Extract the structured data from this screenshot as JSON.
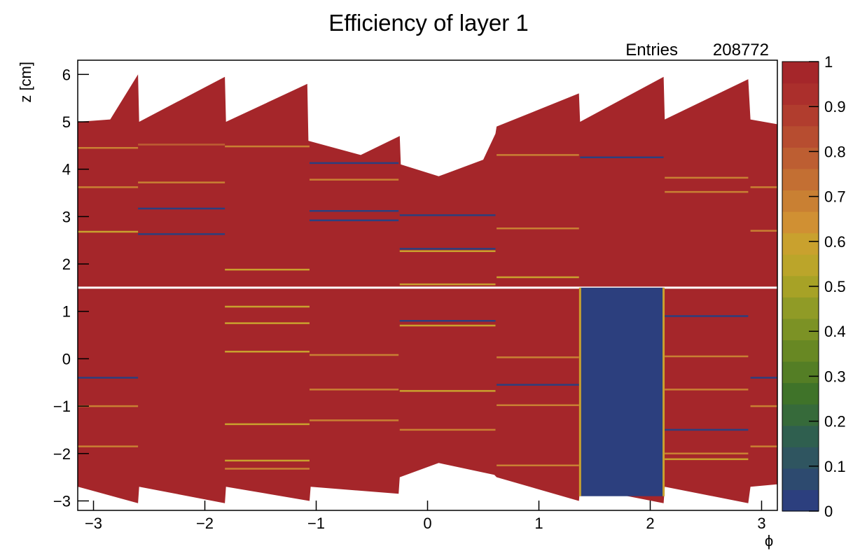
{
  "chart_data": {
    "type": "heatmap",
    "title": "Efficiency of layer 1",
    "stats": {
      "label": "Entries",
      "value": "208772"
    },
    "xlabel": "ϕ",
    "ylabel": "z [cm]",
    "xlim": [
      -3.1416,
      3.1416
    ],
    "ylim": [
      -3.2,
      6.3
    ],
    "zlim": [
      0,
      1
    ],
    "x_ticks": [
      -3,
      -2,
      -1,
      0,
      1,
      2,
      3
    ],
    "x_tick_labels": [
      "−3",
      "−2",
      "−1",
      "0",
      "1",
      "2",
      "3"
    ],
    "y_ticks": [
      -3,
      -2,
      -1,
      0,
      1,
      2,
      3,
      4,
      5,
      6
    ],
    "y_tick_labels": [
      "−3",
      "−2",
      "−1",
      "0",
      "1",
      "2",
      "3",
      "4",
      "5",
      "6"
    ],
    "z_ticks": [
      0,
      0.1,
      0.2,
      0.3,
      0.4,
      0.5,
      0.6,
      0.7,
      0.8,
      0.9,
      1
    ],
    "z_tick_labels": [
      "0",
      "0.1",
      "0.2",
      "0.3",
      "0.4",
      "0.5",
      "0.6",
      "0.7",
      "0.8",
      "0.9",
      "1"
    ],
    "palette": [
      "#2c3f7e",
      "#2d4a6f",
      "#2f5560",
      "#2f5f4f",
      "#366a3a",
      "#3f7329",
      "#547e25",
      "#688823",
      "#7c9225",
      "#909b26",
      "#a7a226",
      "#bba52a",
      "#c9a12e",
      "#d09033",
      "#c98033",
      "#c36f33",
      "#bd5e32",
      "#b74d30",
      "#b13d2e",
      "#ab2f2c",
      "#a5262a"
    ],
    "default_efficiency": 0.99,
    "gap_z": 1.5,
    "upper_edge": [
      {
        "phi": -3.14,
        "z": 5.0
      },
      {
        "phi": -2.85,
        "z": 5.05
      },
      {
        "phi": -2.6,
        "z": 6.0
      },
      {
        "phi": -2.59,
        "z": 5.0
      },
      {
        "phi": -1.82,
        "z": 5.95
      },
      {
        "phi": -1.81,
        "z": 5.0
      },
      {
        "phi": -1.08,
        "z": 5.8
      },
      {
        "phi": -1.07,
        "z": 4.6
      },
      {
        "phi": -0.6,
        "z": 4.3
      },
      {
        "phi": -0.25,
        "z": 4.7
      },
      {
        "phi": -0.24,
        "z": 4.1
      },
      {
        "phi": 0.1,
        "z": 3.85
      },
      {
        "phi": 0.5,
        "z": 4.2
      },
      {
        "phi": 0.61,
        "z": 4.75
      },
      {
        "phi": 0.62,
        "z": 4.9
      },
      {
        "phi": 1.36,
        "z": 5.6
      },
      {
        "phi": 1.37,
        "z": 5.0
      },
      {
        "phi": 2.12,
        "z": 5.95
      },
      {
        "phi": 2.13,
        "z": 5.05
      },
      {
        "phi": 2.88,
        "z": 5.9
      },
      {
        "phi": 2.9,
        "z": 5.05
      },
      {
        "phi": 3.14,
        "z": 4.95
      }
    ],
    "lower_edge": [
      {
        "phi": -3.14,
        "z": -2.7
      },
      {
        "phi": -2.6,
        "z": -3.05
      },
      {
        "phi": -2.59,
        "z": -2.7
      },
      {
        "phi": -1.82,
        "z": -3.05
      },
      {
        "phi": -1.81,
        "z": -2.7
      },
      {
        "phi": -1.06,
        "z": -3.0
      },
      {
        "phi": -1.05,
        "z": -2.7
      },
      {
        "phi": -0.26,
        "z": -2.85
      },
      {
        "phi": -0.25,
        "z": -2.5
      },
      {
        "phi": 0.1,
        "z": -2.2
      },
      {
        "phi": 0.6,
        "z": -2.45
      },
      {
        "phi": 0.62,
        "z": -2.5
      },
      {
        "phi": 1.36,
        "z": -3.0
      },
      {
        "phi": 1.37,
        "z": -2.7
      },
      {
        "phi": 2.12,
        "z": -3.05
      },
      {
        "phi": 2.13,
        "z": -2.7
      },
      {
        "phi": 2.88,
        "z": -3.05
      },
      {
        "phi": 2.9,
        "z": -2.7
      },
      {
        "phi": 3.14,
        "z": -2.65
      }
    ],
    "dead_region": {
      "phi_min": 1.37,
      "phi_max": 2.12,
      "z_min": -2.9,
      "z_max": 1.5,
      "efficiency": 0.0
    },
    "dead_region_borders": [
      {
        "phi": 1.37,
        "z_min": -2.9,
        "z_max": 1.5,
        "efficiency": 0.6
      },
      {
        "phi": 2.12,
        "z_min": -2.9,
        "z_max": 1.5,
        "efficiency": 0.6
      }
    ],
    "low_efficiency_strips": [
      {
        "phi_min": -3.14,
        "phi_max": -2.6,
        "z": 4.45,
        "efficiency": 0.7
      },
      {
        "phi_min": -3.14,
        "phi_max": -2.6,
        "z": 3.62,
        "efficiency": 0.7
      },
      {
        "phi_min": -3.14,
        "phi_max": -2.6,
        "z": 2.68,
        "efficiency": 0.6
      },
      {
        "phi_min": -2.6,
        "phi_max": -1.82,
        "z": 4.52,
        "efficiency": 0.8
      },
      {
        "phi_min": -2.6,
        "phi_max": -1.82,
        "z": 3.72,
        "efficiency": 0.7
      },
      {
        "phi_min": -2.6,
        "phi_max": -1.82,
        "z": 3.17,
        "efficiency": 0.0
      },
      {
        "phi_min": -2.6,
        "phi_max": -1.82,
        "z": 2.63,
        "efficiency": 0.0
      },
      {
        "phi_min": -1.82,
        "phi_max": -1.06,
        "z": 4.48,
        "efficiency": 0.7
      },
      {
        "phi_min": -1.82,
        "phi_max": -1.06,
        "z": 1.88,
        "efficiency": 0.6
      },
      {
        "phi_min": -1.06,
        "phi_max": -0.26,
        "z": 4.13,
        "efficiency": 0.0
      },
      {
        "phi_min": -1.06,
        "phi_max": -0.26,
        "z": 3.78,
        "efficiency": 0.7
      },
      {
        "phi_min": -1.06,
        "phi_max": -0.26,
        "z": 3.12,
        "efficiency": 0.0
      },
      {
        "phi_min": -1.06,
        "phi_max": -0.26,
        "z": 2.92,
        "efficiency": 0.0
      },
      {
        "phi_min": -0.25,
        "phi_max": 0.61,
        "z": 3.03,
        "efficiency": 0.0
      },
      {
        "phi_min": -0.25,
        "phi_max": 0.61,
        "z": 2.32,
        "efficiency": 0.0
      },
      {
        "phi_min": -0.25,
        "phi_max": 0.61,
        "z": 2.27,
        "efficiency": 0.6
      },
      {
        "phi_min": -0.25,
        "phi_max": 0.61,
        "z": 1.57,
        "efficiency": 0.6
      },
      {
        "phi_min": 0.62,
        "phi_max": 1.36,
        "z": 4.3,
        "efficiency": 0.7
      },
      {
        "phi_min": 0.62,
        "phi_max": 1.36,
        "z": 2.75,
        "efficiency": 0.7
      },
      {
        "phi_min": 0.62,
        "phi_max": 1.36,
        "z": 1.72,
        "efficiency": 0.6
      },
      {
        "phi_min": 1.37,
        "phi_max": 2.12,
        "z": 4.25,
        "efficiency": 0.0
      },
      {
        "phi_min": 2.13,
        "phi_max": 2.88,
        "z": 3.82,
        "efficiency": 0.7
      },
      {
        "phi_min": 2.13,
        "phi_max": 2.88,
        "z": 3.52,
        "efficiency": 0.7
      },
      {
        "phi_min": 2.9,
        "phi_max": 3.14,
        "z": 3.62,
        "efficiency": 0.7
      },
      {
        "phi_min": 2.9,
        "phi_max": 3.14,
        "z": 2.7,
        "efficiency": 0.7
      },
      {
        "phi_min": -1.82,
        "phi_max": -1.06,
        "z": 1.1,
        "efficiency": 0.6
      },
      {
        "phi_min": -1.82,
        "phi_max": -1.06,
        "z": 0.75,
        "efficiency": 0.6
      },
      {
        "phi_min": -1.82,
        "phi_max": -1.06,
        "z": 0.15,
        "efficiency": 0.6
      },
      {
        "phi_min": -1.82,
        "phi_max": -1.06,
        "z": -1.38,
        "efficiency": 0.6
      },
      {
        "phi_min": -1.82,
        "phi_max": -1.06,
        "z": -2.15,
        "efficiency": 0.6
      },
      {
        "phi_min": -1.82,
        "phi_max": -1.06,
        "z": -2.32,
        "efficiency": 0.7
      },
      {
        "phi_min": -1.06,
        "phi_max": -0.26,
        "z": 0.08,
        "efficiency": 0.7
      },
      {
        "phi_min": -1.06,
        "phi_max": -0.26,
        "z": -0.65,
        "efficiency": 0.7
      },
      {
        "phi_min": -1.06,
        "phi_max": -0.26,
        "z": -1.3,
        "efficiency": 0.7
      },
      {
        "phi_min": -0.25,
        "phi_max": 0.61,
        "z": 0.8,
        "efficiency": 0.0
      },
      {
        "phi_min": -0.25,
        "phi_max": 0.61,
        "z": 0.7,
        "efficiency": 0.6
      },
      {
        "phi_min": -0.25,
        "phi_max": 0.61,
        "z": -0.68,
        "efficiency": 0.6
      },
      {
        "phi_min": -0.25,
        "phi_max": 0.61,
        "z": -1.5,
        "efficiency": 0.7
      },
      {
        "phi_min": 0.62,
        "phi_max": 1.36,
        "z": 0.03,
        "efficiency": 0.7
      },
      {
        "phi_min": 0.62,
        "phi_max": 1.36,
        "z": -0.55,
        "efficiency": 0.0
      },
      {
        "phi_min": 0.62,
        "phi_max": 1.36,
        "z": -0.98,
        "efficiency": 0.7
      },
      {
        "phi_min": 0.62,
        "phi_max": 1.36,
        "z": -2.25,
        "efficiency": 0.7
      },
      {
        "phi_min": 2.13,
        "phi_max": 2.88,
        "z": 0.9,
        "efficiency": 0.0
      },
      {
        "phi_min": 2.13,
        "phi_max": 2.88,
        "z": 0.05,
        "efficiency": 0.7
      },
      {
        "phi_min": 2.13,
        "phi_max": 2.88,
        "z": -0.65,
        "efficiency": 0.7
      },
      {
        "phi_min": 2.13,
        "phi_max": 2.88,
        "z": -1.5,
        "efficiency": 0.0
      },
      {
        "phi_min": 2.13,
        "phi_max": 2.88,
        "z": -2.0,
        "efficiency": 0.7
      },
      {
        "phi_min": 2.13,
        "phi_max": 2.88,
        "z": -2.12,
        "efficiency": 0.6
      },
      {
        "phi_min": -3.14,
        "phi_max": -2.6,
        "z": -0.4,
        "efficiency": 0.0
      },
      {
        "phi_min": -3.14,
        "phi_max": -2.6,
        "z": -1.0,
        "efficiency": 0.7
      },
      {
        "phi_min": -3.14,
        "phi_max": -2.6,
        "z": -1.85,
        "efficiency": 0.7
      },
      {
        "phi_min": 2.9,
        "phi_max": 3.14,
        "z": -0.4,
        "efficiency": 0.0
      },
      {
        "phi_min": 2.9,
        "phi_max": 3.14,
        "z": -1.0,
        "efficiency": 0.7
      },
      {
        "phi_min": 2.9,
        "phi_max": 3.14,
        "z": -1.85,
        "efficiency": 0.7
      }
    ]
  }
}
